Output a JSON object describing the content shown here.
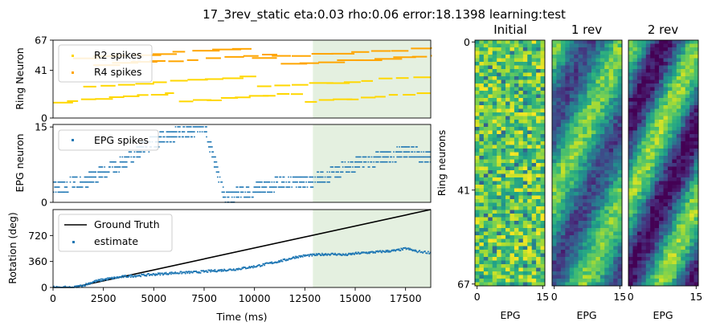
{
  "figure": {
    "suptitle": "17_3rev_static eta:0.03 rho:0.06 error:18.1398 learning:test"
  },
  "colors": {
    "r2": "#ffd700",
    "r4": "#ffa500",
    "epg": "#1f77b4",
    "truth": "#000000",
    "estimate": "#1f77b4",
    "test_region": "#e4f0e0"
  },
  "chart_data": [
    {
      "id": "ring_spikes",
      "type": "scatter",
      "xlim": [
        0,
        18750
      ],
      "ylim": [
        0,
        67
      ],
      "ylabel": "Ring Neuron",
      "yticks": [
        0,
        41,
        67
      ],
      "ytick_labels": [
        "0",
        "41",
        "67"
      ],
      "shaded_x": [
        12900,
        18750
      ],
      "legend": {
        "placement": "upper-left",
        "entries": [
          "R2 spikes",
          "R4 spikes"
        ]
      },
      "series": [
        {
          "name": "R2 spikes",
          "color": "#ffd700",
          "tracks": [
            {
              "x0": 0,
              "x1": 18750,
              "y0": 14,
              "y1": 22,
              "wraps": 3
            },
            {
              "x0": 1500,
              "x1": 18750,
              "y0": 27,
              "y1": 36,
              "wraps": 2
            }
          ]
        },
        {
          "name": "R4 spikes",
          "color": "#ffa500",
          "tracks": [
            {
              "x0": 2000,
              "x1": 18750,
              "y0": 46,
              "y1": 54,
              "wraps": 2
            },
            {
              "x0": 1000,
              "x1": 18750,
              "y0": 52,
              "y1": 60,
              "wraps": 2
            }
          ]
        }
      ]
    },
    {
      "id": "epg_spikes",
      "type": "scatter",
      "xlim": [
        0,
        18750
      ],
      "ylim": [
        0,
        15.5
      ],
      "ylabel": "EPG neuron",
      "yticks": [
        0,
        15
      ],
      "ytick_labels": [
        "0",
        "15"
      ],
      "shaded_x": [
        12900,
        18750
      ],
      "legend": {
        "placement": "upper-left",
        "entries": [
          "EPG spikes"
        ]
      },
      "series": [
        {
          "name": "EPG spikes",
          "color": "#1f77b4",
          "bump": [
            [
              0,
              3
            ],
            [
              1500,
              4
            ],
            [
              2500,
              6
            ],
            [
              3500,
              8
            ],
            [
              4500,
              11
            ],
            [
              5500,
              13
            ],
            [
              6500,
              14
            ],
            [
              7500,
              15
            ],
            [
              8500,
              1
            ],
            [
              9500,
              2
            ],
            [
              10500,
              3
            ],
            [
              11500,
              4
            ],
            [
              12500,
              4
            ],
            [
              13500,
              5
            ],
            [
              14500,
              7
            ],
            [
              15500,
              8
            ],
            [
              16500,
              9
            ],
            [
              17500,
              10
            ],
            [
              18750,
              9
            ]
          ]
        }
      ]
    },
    {
      "id": "rotation",
      "type": "line",
      "xlim": [
        0,
        18750
      ],
      "ylim": [
        0,
        1080
      ],
      "xlabel": "Time (ms)",
      "ylabel": "Rotation (deg)",
      "xticks": [
        0,
        2500,
        5000,
        7500,
        10000,
        12500,
        15000,
        17500
      ],
      "xtick_labels": [
        "0",
        "2500",
        "5000",
        "7500",
        "10000",
        "12500",
        "15000",
        "17500"
      ],
      "yticks": [
        0,
        360,
        720
      ],
      "ytick_labels": [
        "0",
        "360",
        "720"
      ],
      "shaded_x": [
        12900,
        18750
      ],
      "legend": {
        "placement": "upper-left",
        "entries": [
          "Ground Truth",
          "estimate"
        ]
      },
      "series": [
        {
          "name": "Ground Truth",
          "color": "#000000",
          "style": "line",
          "x": [
            0,
            1000,
            18750
          ],
          "y": [
            0,
            0,
            1080
          ]
        },
        {
          "name": "estimate",
          "color": "#1f77b4",
          "style": "points",
          "x": [
            0,
            1000,
            1500,
            2000,
            2500,
            3000,
            3500,
            4000,
            4500,
            5000,
            5500,
            6000,
            6500,
            7000,
            7500,
            8000,
            8500,
            9000,
            9500,
            10000,
            10500,
            11000,
            11500,
            12000,
            12500,
            13000,
            13500,
            14000,
            14500,
            15000,
            15500,
            16000,
            16500,
            17000,
            17500,
            18000,
            18750
          ],
          "y": [
            0,
            0,
            30,
            80,
            110,
            130,
            150,
            160,
            170,
            180,
            190,
            200,
            205,
            210,
            220,
            230,
            240,
            250,
            270,
            290,
            320,
            350,
            380,
            420,
            440,
            450,
            460,
            460,
            450,
            470,
            480,
            490,
            500,
            510,
            540,
            500,
            480
          ]
        }
      ]
    },
    {
      "id": "weights_initial",
      "type": "heatmap",
      "title": "Initial",
      "xlabel": "EPG",
      "ylabel": "Ring neurons",
      "xticks": [
        0,
        15
      ],
      "xtick_labels": [
        "0",
        "15"
      ],
      "yticks": [
        0,
        41,
        67
      ],
      "ytick_labels": [
        "0",
        "41",
        "67"
      ],
      "rows": 68,
      "cols": 16,
      "pattern": "random-high"
    },
    {
      "id": "weights_1rev",
      "type": "heatmap",
      "title": "1 rev",
      "xlabel": "EPG",
      "xticks": [
        0,
        15
      ],
      "xtick_labels": [
        "0",
        "15"
      ],
      "rows": 68,
      "cols": 16,
      "pattern": "diagonal-bands"
    },
    {
      "id": "weights_2rev",
      "type": "heatmap",
      "title": "2 rev",
      "xlabel": "EPG",
      "xticks": [
        0,
        15
      ],
      "xtick_labels": [
        "0",
        "15"
      ],
      "rows": 68,
      "cols": 16,
      "pattern": "diagonal-bands-strong"
    }
  ]
}
